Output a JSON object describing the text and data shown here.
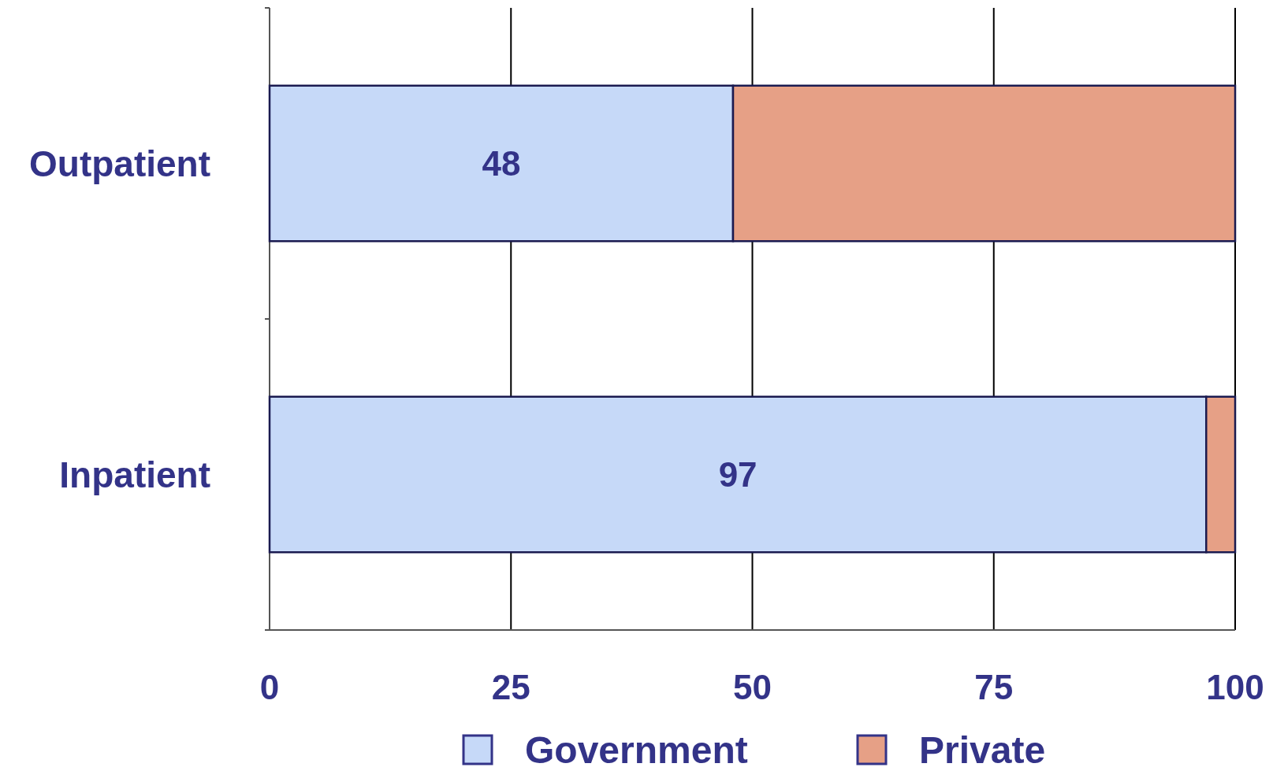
{
  "chart_data": {
    "type": "bar",
    "orientation": "horizontal",
    "stacked": true,
    "categories": [
      "Outpatient",
      "Inpatient"
    ],
    "series": [
      {
        "name": "Government",
        "color": "#c6d9f8",
        "values": [
          48,
          97
        ],
        "value_labels": [
          "48",
          "97"
        ]
      },
      {
        "name": "Private",
        "color": "#e6a086",
        "values": [
          52,
          3
        ]
      }
    ],
    "xlim": [
      0,
      100
    ],
    "xticks": [
      0,
      25,
      50,
      75,
      100
    ],
    "grid": "x",
    "legend": "bottom"
  }
}
